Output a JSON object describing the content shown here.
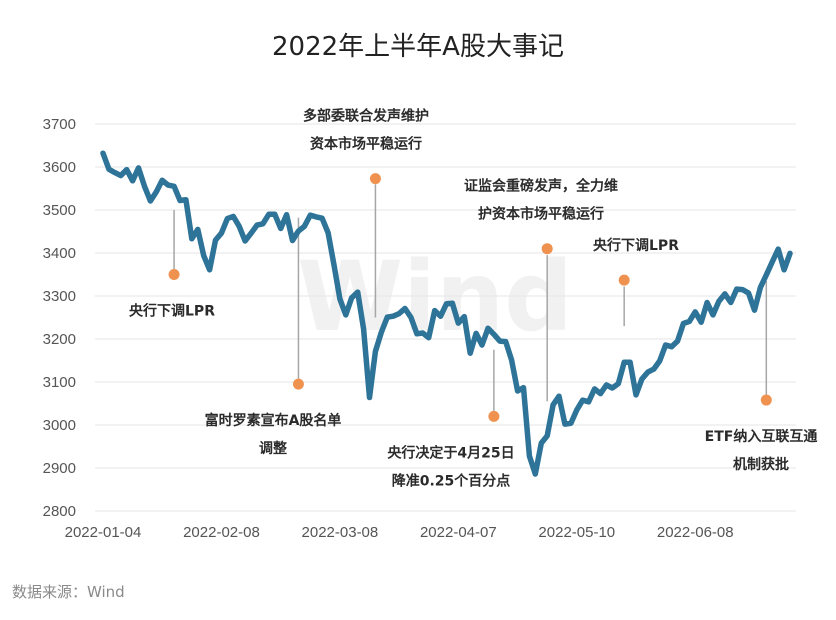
{
  "chart_data": {
    "type": "line",
    "title": "2022年上半年A股大事记",
    "source": "数据来源：Wind",
    "watermark": "Wind",
    "ylim": [
      2800,
      3700
    ],
    "yticks": [
      2800,
      2900,
      3000,
      3100,
      3200,
      3300,
      3400,
      3500,
      3600,
      3700
    ],
    "xlim": [
      "2022-01-04",
      "2022-06-30"
    ],
    "xticks": [
      "2022-01-04",
      "2022-02-08",
      "2022-03-08",
      "2022-04-07",
      "2022-05-10",
      "2022-06-08"
    ],
    "grid": true,
    "line_color": "#2e7398",
    "marker_color": "#f0924f",
    "guide_color": "#a6a6a6",
    "series": [
      {
        "points": [
          [
            "2022-01-04",
            3632
          ],
          [
            "2022-01-05",
            3595
          ],
          [
            "2022-01-06",
            3587
          ],
          [
            "2022-01-07",
            3580
          ],
          [
            "2022-01-10",
            3594
          ],
          [
            "2022-01-11",
            3568
          ],
          [
            "2022-01-12",
            3598
          ],
          [
            "2022-01-13",
            3555
          ],
          [
            "2022-01-14",
            3521
          ],
          [
            "2022-01-17",
            3542
          ],
          [
            "2022-01-18",
            3569
          ],
          [
            "2022-01-19",
            3558
          ],
          [
            "2022-01-20",
            3555
          ],
          [
            "2022-01-21",
            3522
          ],
          [
            "2022-01-24",
            3524
          ],
          [
            "2022-01-25",
            3433
          ],
          [
            "2022-01-26",
            3455
          ],
          [
            "2022-01-27",
            3394
          ],
          [
            "2022-01-28",
            3361
          ],
          [
            "2022-02-07",
            3430
          ],
          [
            "2022-02-08",
            3446
          ],
          [
            "2022-02-09",
            3480
          ],
          [
            "2022-02-10",
            3485
          ],
          [
            "2022-02-11",
            3462
          ],
          [
            "2022-02-14",
            3428
          ],
          [
            "2022-02-15",
            3446
          ],
          [
            "2022-02-16",
            3465
          ],
          [
            "2022-02-17",
            3468
          ],
          [
            "2022-02-18",
            3490
          ],
          [
            "2022-02-21",
            3490
          ],
          [
            "2022-02-22",
            3457
          ],
          [
            "2022-02-23",
            3489
          ],
          [
            "2022-02-24",
            3429
          ],
          [
            "2022-02-25",
            3451
          ],
          [
            "2022-02-28",
            3462
          ],
          [
            "2022-03-01",
            3488
          ],
          [
            "2022-03-02",
            3484
          ],
          [
            "2022-03-03",
            3481
          ],
          [
            "2022-03-04",
            3447
          ],
          [
            "2022-03-07",
            3372
          ],
          [
            "2022-03-08",
            3293
          ],
          [
            "2022-03-09",
            3256
          ],
          [
            "2022-03-10",
            3296
          ],
          [
            "2022-03-11",
            3309
          ],
          [
            "2022-03-14",
            3223
          ],
          [
            "2022-03-15",
            3064
          ],
          [
            "2022-03-16",
            3171
          ],
          [
            "2022-03-17",
            3216
          ],
          [
            "2022-03-18",
            3251
          ],
          [
            "2022-03-21",
            3253
          ],
          [
            "2022-03-22",
            3259
          ],
          [
            "2022-03-23",
            3271
          ],
          [
            "2022-03-24",
            3250
          ],
          [
            "2022-03-25",
            3212
          ],
          [
            "2022-03-28",
            3214
          ],
          [
            "2022-03-29",
            3203
          ],
          [
            "2022-03-30",
            3266
          ],
          [
            "2022-03-31",
            3253
          ],
          [
            "2022-04-01",
            3282
          ],
          [
            "2022-04-06",
            3283
          ],
          [
            "2022-04-07",
            3237
          ],
          [
            "2022-04-08",
            3252
          ],
          [
            "2022-04-11",
            3167
          ],
          [
            "2022-04-12",
            3213
          ],
          [
            "2022-04-13",
            3186
          ],
          [
            "2022-04-14",
            3225
          ],
          [
            "2022-04-15",
            3211
          ],
          [
            "2022-04-18",
            3195
          ],
          [
            "2022-04-19",
            3194
          ],
          [
            "2022-04-20",
            3151
          ],
          [
            "2022-04-21",
            3079
          ],
          [
            "2022-04-22",
            3087
          ],
          [
            "2022-04-25",
            2928
          ],
          [
            "2022-04-26",
            2886
          ],
          [
            "2022-04-27",
            2958
          ],
          [
            "2022-04-28",
            2975
          ],
          [
            "2022-04-29",
            3047
          ],
          [
            "2022-05-05",
            3067
          ],
          [
            "2022-05-06",
            3002
          ],
          [
            "2022-05-09",
            3004
          ],
          [
            "2022-05-10",
            3035
          ],
          [
            "2022-05-11",
            3058
          ],
          [
            "2022-05-12",
            3054
          ],
          [
            "2022-05-13",
            3084
          ],
          [
            "2022-05-16",
            3073
          ],
          [
            "2022-05-17",
            3093
          ],
          [
            "2022-05-18",
            3086
          ],
          [
            "2022-05-19",
            3096
          ],
          [
            "2022-05-20",
            3146
          ],
          [
            "2022-05-23",
            3146
          ],
          [
            "2022-05-24",
            3070
          ],
          [
            "2022-05-25",
            3107
          ],
          [
            "2022-05-26",
            3123
          ],
          [
            "2022-05-27",
            3130
          ],
          [
            "2022-05-30",
            3149
          ],
          [
            "2022-05-31",
            3186
          ],
          [
            "2022-06-01",
            3182
          ],
          [
            "2022-06-02",
            3195
          ],
          [
            "2022-06-06",
            3236
          ],
          [
            "2022-06-07",
            3241
          ],
          [
            "2022-06-08",
            3263
          ],
          [
            "2022-06-09",
            3239
          ],
          [
            "2022-06-10",
            3285
          ],
          [
            "2022-06-13",
            3256
          ],
          [
            "2022-06-14",
            3288
          ],
          [
            "2022-06-15",
            3305
          ],
          [
            "2022-06-16",
            3285
          ],
          [
            "2022-06-17",
            3316
          ],
          [
            "2022-06-20",
            3315
          ],
          [
            "2022-06-21",
            3307
          ],
          [
            "2022-06-22",
            3267
          ],
          [
            "2022-06-23",
            3320
          ],
          [
            "2022-06-24",
            3349
          ],
          [
            "2022-06-27",
            3379
          ],
          [
            "2022-06-28",
            3409
          ],
          [
            "2022-06-29",
            3361
          ],
          [
            "2022-06-30",
            3399
          ]
        ]
      }
    ],
    "annotations": [
      {
        "lines": [
          "央行下调LPR"
        ],
        "date": "2022-01-20",
        "marker": 3350,
        "guide_top": 3500,
        "label_pos": "below"
      },
      {
        "lines": [
          "富时罗素宣布A股名单",
          "调整"
        ],
        "date": "2022-02-25",
        "marker": 3095,
        "guide_top": 3482,
        "label_pos": "below"
      },
      {
        "lines": [
          "多部委联合发声维护",
          "资本市场平稳运行"
        ],
        "date": "2022-03-16",
        "marker": 3573,
        "guide_top": 3560,
        "guide_bottom": 3250,
        "label_pos": "above"
      },
      {
        "lines": [
          "央行决定于4月25日",
          "降准0.25个百分点"
        ],
        "date": "2022-04-15",
        "marker": 3020,
        "guide_top": 3175,
        "label_pos": "below"
      },
      {
        "lines": [
          "证监会重磅发声，全力维",
          "护资本市场平稳运行"
        ],
        "date": "2022-04-28",
        "marker": 3410,
        "guide_top": 3395,
        "guide_bottom": 3055,
        "label_pos": "above"
      },
      {
        "lines": [
          "央行下调LPR"
        ],
        "date": "2022-05-20",
        "marker": 3337,
        "guide_top": 3322,
        "guide_bottom": 3230,
        "label_pos": "above"
      },
      {
        "lines": [
          "ETF纳入互联互通",
          "机制获批"
        ],
        "date": "2022-06-24",
        "marker": 3058,
        "guide_top": 3335,
        "label_pos": "below"
      }
    ]
  }
}
